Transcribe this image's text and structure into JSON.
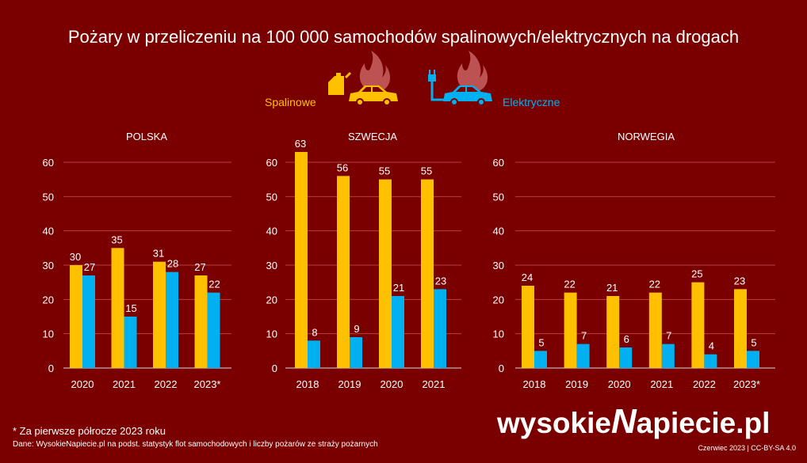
{
  "title": "Pożary w przeliczeniu na 100 000 samochodów spalinowych/elektrycznych na drogach",
  "legend": {
    "combustion_label": "Spalinowe",
    "electric_label": "Elektryczne",
    "combustion_icon": "fuel-car-fire-icon",
    "electric_icon": "plug-car-fire-icon"
  },
  "colors": {
    "background": "#7a0000",
    "combustion": "#ffc000",
    "electric": "#00b0f0",
    "grid": "#b84040",
    "text": "#ffffff",
    "flame": "#c86060"
  },
  "chart_data": [
    {
      "type": "bar",
      "title": "POLSKA",
      "categories": [
        "2020",
        "2021",
        "2022",
        "2023*"
      ],
      "ylim": [
        0,
        60
      ],
      "yticks": [
        "0",
        "10",
        "20",
        "30",
        "40",
        "50",
        "60"
      ],
      "grid": true,
      "series": [
        {
          "name": "Spalinowe",
          "values": [
            30,
            35,
            31,
            27
          ]
        },
        {
          "name": "Elektryczne",
          "values": [
            27,
            15,
            28,
            22
          ]
        }
      ]
    },
    {
      "type": "bar",
      "title": "SZWECJA",
      "categories": [
        "2018",
        "2019",
        "2020",
        "2021"
      ],
      "ylim": [
        0,
        60
      ],
      "yticks": [
        "0",
        "10",
        "20",
        "30",
        "40",
        "50",
        "60"
      ],
      "grid": true,
      "series": [
        {
          "name": "Spalinowe",
          "values": [
            63,
            56,
            55,
            55
          ]
        },
        {
          "name": "Elektryczne",
          "values": [
            8,
            9,
            21,
            23
          ]
        }
      ]
    },
    {
      "type": "bar",
      "title": "NORWEGIA",
      "categories": [
        "2018",
        "2019",
        "2020",
        "2021",
        "2022",
        "2023*"
      ],
      "ylim": [
        0,
        60
      ],
      "yticks": [
        "0",
        "10",
        "20",
        "30",
        "40",
        "50",
        "60"
      ],
      "grid": true,
      "series": [
        {
          "name": "Spalinowe",
          "values": [
            24,
            22,
            21,
            22,
            25,
            23
          ]
        },
        {
          "name": "Elektryczne",
          "values": [
            5,
            7,
            6,
            7,
            4,
            5
          ]
        }
      ]
    }
  ],
  "footnote": "* Za pierwsze półrocze 2023 roku",
  "source": "Dane: WysokieNapiecie.pl na podst. statystyk flot samochodowych i liczby pożarów ze straży pożarnych",
  "logo": {
    "part1": "wysokie",
    "part2": "apiecie.pl",
    "n_letter": "N"
  },
  "credit": "Czerwiec 2023  |  CC-BY-SA 4.0"
}
